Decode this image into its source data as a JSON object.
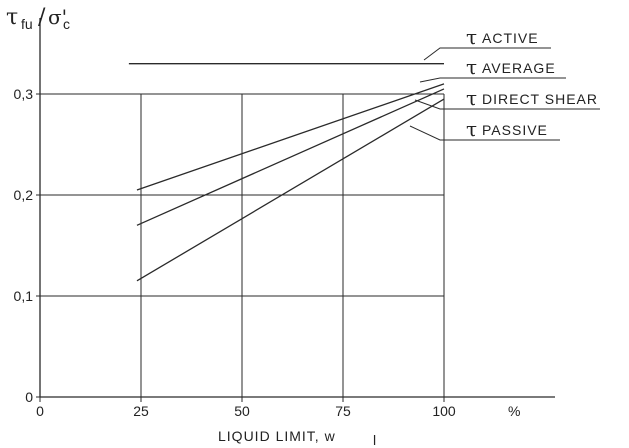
{
  "chart_data": {
    "type": "line",
    "ylabel_num": "τ",
    "ylabel_num_sub": "fu",
    "ylabel_den": "σ'",
    "ylabel_den_sub": "c",
    "xlabel_main": "LIQUID LIMIT, w",
    "xlabel_sub": "l",
    "x_unit": "%",
    "xlim": [
      0,
      110
    ],
    "ylim": [
      0,
      0.35
    ],
    "x_ticks": [
      {
        "value": 0,
        "label": "0"
      },
      {
        "value": 25,
        "label": "25"
      },
      {
        "value": 50,
        "label": "50"
      },
      {
        "value": 75,
        "label": "75"
      },
      {
        "value": 100,
        "label": "100"
      }
    ],
    "y_ticks": [
      {
        "value": 0,
        "label": "0"
      },
      {
        "value": 0.1,
        "label": "0,1"
      },
      {
        "value": 0.2,
        "label": "0,2"
      },
      {
        "value": 0.3,
        "label": "0,3"
      }
    ],
    "grid": true,
    "series": [
      {
        "name": "ACTIVE",
        "x": [
          22,
          100
        ],
        "y": [
          0.33,
          0.33
        ]
      },
      {
        "name": "AVERAGE",
        "x": [
          24,
          100
        ],
        "y": [
          0.205,
          0.31
        ]
      },
      {
        "name": "DIRECT SHEAR",
        "x": [
          24,
          100
        ],
        "y": [
          0.17,
          0.305
        ]
      },
      {
        "name": "PASSIVE",
        "x": [
          24,
          100
        ],
        "y": [
          0.115,
          0.295
        ]
      }
    ],
    "annotation_symbol": "τ"
  }
}
